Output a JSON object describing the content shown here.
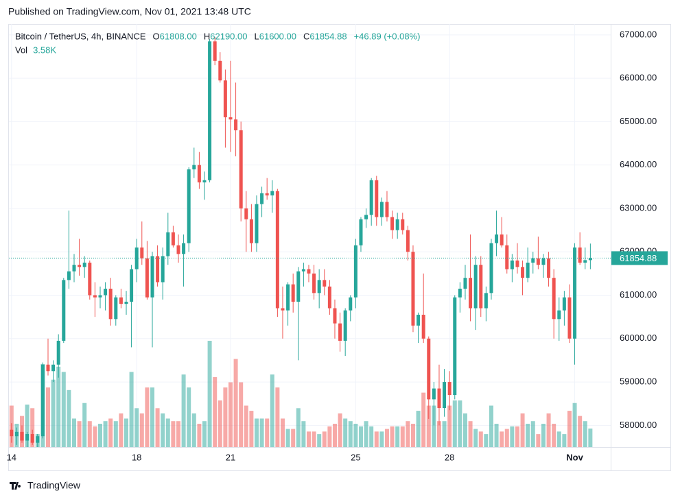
{
  "header": {
    "published": "Published on TradingView.com, Nov 01, 2021 13:48 UTC"
  },
  "footer": {
    "brand": "TradingView"
  },
  "chart_data": {
    "type": "candlestick",
    "legend": {
      "symbol": "Bitcoin / TetherUS, 4h, BINANCE",
      "o": "O",
      "open": "61808.00",
      "h": "H",
      "high": "62190.00",
      "l": "L",
      "low": "61600.00",
      "c": "C",
      "change": "+46.89 (+0.08%)",
      "vol": "Vol",
      "vol_value": "3.58K"
    },
    "up_color": "#26a69a",
    "down_color": "#ef5350",
    "vol_up_color": "rgba(38,166,154,0.5)",
    "vol_down_color": "rgba(239,83,80,0.5)",
    "ylim": [
      57500,
      67250
    ],
    "xlim": [
      -0.5,
      114.9
    ],
    "grid": true,
    "yticks": [
      {
        "value": 58000,
        "label": "58000.00"
      },
      {
        "value": 59000,
        "label": "59000.00"
      },
      {
        "value": 60000,
        "label": "60000.00"
      },
      {
        "value": 61000,
        "label": "61000.00"
      },
      {
        "value": 62000,
        "label": "62000.00"
      },
      {
        "value": 63000,
        "label": "63000.00"
      },
      {
        "value": 64000,
        "label": "64000.00"
      },
      {
        "value": 65000,
        "label": "65000.00"
      },
      {
        "value": 66000,
        "label": "66000.00"
      },
      {
        "value": 67000,
        "label": "67000.00"
      }
    ],
    "xticks": [
      {
        "value": 0,
        "label": "14"
      },
      {
        "value": 24,
        "label": "18"
      },
      {
        "value": 42,
        "label": "21"
      },
      {
        "value": 66,
        "label": "25"
      },
      {
        "value": 84,
        "label": "28"
      },
      {
        "value": 108,
        "label": "Nov"
      }
    ],
    "open": [
      57900,
      57750,
      57850,
      57650,
      57800,
      57600,
      57750,
      59400,
      59250,
      59400,
      59950,
      61350,
      61550,
      61700,
      61650,
      61750,
      61000,
      60950,
      61000,
      61150,
      60450,
      60950,
      60800,
      60850,
      61600,
      62100,
      61850,
      60950,
      61900,
      61300,
      61900,
      62450,
      62150,
      61950,
      62200,
      63900,
      64000,
      63600,
      63650,
      66850,
      66400,
      65950,
      65100,
      65050,
      64800,
      63000,
      62750,
      62200,
      63100,
      63350,
      63300,
      63400,
      60700,
      60650,
      61250,
      60850,
      61550,
      61600,
      61500,
      61050,
      61350,
      61200,
      60700,
      60350,
      59950,
      60650,
      60950,
      62150,
      62750,
      62850,
      63650,
      62800,
      63150,
      62800,
      62500,
      62750,
      62500,
      62000,
      60300,
      60550,
      60000,
      58600,
      58850,
      58400,
      59000,
      58700,
      60950,
      61150,
      61400,
      60700,
      61700,
      60700,
      61050,
      62200,
      62400,
      62150,
      61600,
      61800,
      61650,
      61400,
      61750,
      61850,
      61700,
      61850,
      61400,
      60450,
      60650,
      60950,
      60000,
      62100,
      61750,
      61808
    ],
    "high": [
      58050,
      57950,
      58000,
      57850,
      57900,
      57800,
      59450,
      60000,
      59500,
      60100,
      61400,
      62950,
      61950,
      62300,
      61900,
      61800,
      61300,
      61200,
      61300,
      61400,
      61000,
      61150,
      61100,
      61700,
      62300,
      62700,
      62250,
      62000,
      62150,
      62100,
      62900,
      62600,
      62400,
      62400,
      63950,
      64400,
      64300,
      63850,
      66900,
      66950,
      66600,
      66200,
      66400,
      65900,
      65000,
      63400,
      63100,
      63300,
      63500,
      63700,
      63650,
      63450,
      61200,
      61300,
      61500,
      61650,
      61750,
      61700,
      61700,
      61600,
      61600,
      61350,
      60900,
      60600,
      60700,
      61000,
      62300,
      62800,
      63000,
      63700,
      63750,
      63250,
      63400,
      62950,
      62900,
      62900,
      62600,
      62150,
      60600,
      61500,
      60050,
      59000,
      59400,
      59300,
      59250,
      61000,
      61300,
      61700,
      62400,
      61900,
      61900,
      61200,
      62300,
      62950,
      62800,
      62400,
      61950,
      62200,
      61800,
      62100,
      62000,
      62350,
      61950,
      62000,
      61600,
      60950,
      61100,
      61250,
      62200,
      62450,
      62100,
      62190
    ],
    "low": [
      57600,
      57550,
      57600,
      57500,
      57550,
      57500,
      57700,
      59150,
      59000,
      59100,
      59900,
      61150,
      61300,
      61450,
      61400,
      60900,
      60500,
      60700,
      60650,
      60300,
      60300,
      60700,
      60550,
      59800,
      61300,
      61700,
      60900,
      59800,
      61200,
      60900,
      61700,
      62100,
      61750,
      61200,
      62000,
      63700,
      63450,
      63200,
      63600,
      66300,
      65900,
      64400,
      64300,
      64200,
      62700,
      62000,
      62000,
      62000,
      62800,
      63200,
      62900,
      60500,
      60000,
      60300,
      60600,
      59500,
      61200,
      61300,
      60900,
      60700,
      61000,
      60550,
      60000,
      59700,
      59600,
      60400,
      60700,
      62000,
      62550,
      62600,
      62600,
      62600,
      62700,
      62300,
      62300,
      62400,
      61800,
      60150,
      59900,
      59900,
      58150,
      58000,
      58000,
      58200,
      58350,
      58600,
      60600,
      60900,
      60400,
      60200,
      60500,
      60400,
      60900,
      61900,
      62100,
      61500,
      61300,
      61500,
      61000,
      61300,
      61500,
      61600,
      61400,
      61200,
      60000,
      59950,
      60300,
      59900,
      59400,
      61700,
      61600,
      61600
    ],
    "close": [
      57750,
      57850,
      57650,
      57800,
      57600,
      57750,
      59400,
      59250,
      59400,
      59950,
      61350,
      61550,
      61700,
      61650,
      61750,
      61000,
      60950,
      61000,
      61150,
      60450,
      60950,
      60800,
      60850,
      61600,
      62100,
      61850,
      60950,
      61900,
      61300,
      61900,
      62450,
      62150,
      61950,
      62200,
      63900,
      64000,
      63600,
      63650,
      66850,
      66400,
      65950,
      65100,
      65050,
      64800,
      63000,
      62750,
      62200,
      63100,
      63350,
      63300,
      63400,
      60700,
      60650,
      61250,
      60850,
      61550,
      61600,
      61500,
      61050,
      61350,
      61200,
      60700,
      60350,
      59950,
      60650,
      60950,
      62150,
      62750,
      62850,
      63650,
      62800,
      63150,
      62800,
      62500,
      62750,
      62500,
      62000,
      60300,
      60550,
      60000,
      58600,
      58850,
      58400,
      59000,
      58700,
      60950,
      61150,
      61400,
      60700,
      61700,
      60700,
      61050,
      62200,
      62400,
      62150,
      61600,
      61800,
      61650,
      61400,
      61750,
      61850,
      61700,
      61850,
      61400,
      60450,
      60650,
      60950,
      60000,
      62100,
      61750,
      61808,
      61854.88
    ],
    "volume": [
      8000,
      4500,
      6000,
      8200,
      7500,
      2500,
      16000,
      11500,
      13000,
      15500,
      14500,
      11000,
      5500,
      5000,
      8500,
      5000,
      4000,
      4500,
      5000,
      5500,
      5000,
      6500,
      5500,
      14500,
      7500,
      6500,
      11500,
      11500,
      7500,
      6500,
      5500,
      5000,
      5000,
      14000,
      11500,
      6500,
      4500,
      5000,
      20500,
      13500,
      9000,
      11500,
      12500,
      17000,
      12500,
      8000,
      7000,
      5500,
      5500,
      5500,
      14000,
      11500,
      5500,
      3500,
      3500,
      7500,
      5000,
      3000,
      3000,
      2500,
      3000,
      4000,
      4500,
      6500,
      5500,
      5000,
      4500,
      4000,
      5000,
      4000,
      3000,
      3000,
      3500,
      4000,
      4000,
      4000,
      5000,
      4500,
      7000,
      10500,
      8000,
      8000,
      5000,
      5000,
      8000,
      9000,
      9000,
      6500,
      5000,
      3500,
      3000,
      2500,
      8000,
      4500,
      3000,
      3500,
      4000,
      4000,
      6500,
      4500,
      5000,
      2500,
      4500,
      6500,
      4500,
      3000,
      2500,
      7000,
      8500,
      6000,
      5000,
      3580
    ]
  }
}
